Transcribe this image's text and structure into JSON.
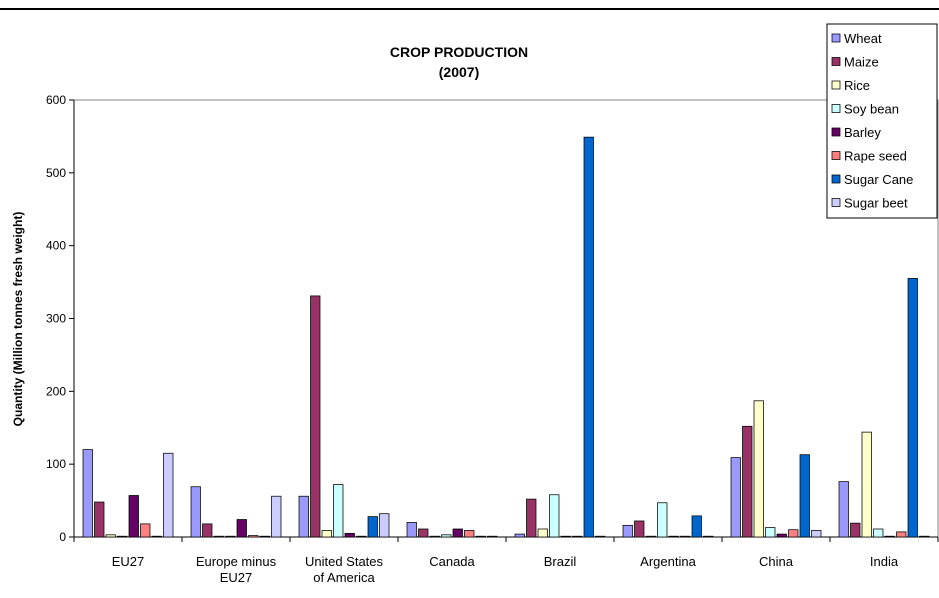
{
  "chart_data": {
    "type": "bar",
    "title": "CROP PRODUCTION",
    "subtitle": "(2007)",
    "xlabel": "",
    "ylabel": "Quantity (Million tonnes fresh weight)",
    "ylim": [
      0,
      600
    ],
    "yticks": [
      0,
      100,
      200,
      300,
      400,
      500,
      600
    ],
    "grid": false,
    "legend_position": "top-right",
    "categories": [
      [
        "EU27"
      ],
      [
        "Europe minus",
        "EU27"
      ],
      [
        "United States",
        "of America"
      ],
      [
        "Canada"
      ],
      [
        "Brazil"
      ],
      [
        "Argentina"
      ],
      [
        "China"
      ],
      [
        "India"
      ]
    ],
    "series": [
      {
        "name": "Wheat",
        "color": "#9999ff",
        "values": [
          120,
          69,
          56,
          20,
          4,
          16,
          109,
          76
        ]
      },
      {
        "name": "Maize",
        "color": "#993366",
        "values": [
          48,
          18,
          331,
          11,
          52,
          22,
          152,
          19
        ]
      },
      {
        "name": "Rice",
        "color": "#ffffcc",
        "values": [
          3,
          1,
          9,
          0,
          11,
          1,
          187,
          144
        ]
      },
      {
        "name": "Soy bean",
        "color": "#ccffff",
        "values": [
          1,
          1,
          72,
          3,
          58,
          47,
          13,
          11
        ]
      },
      {
        "name": "Barley",
        "color": "#660066",
        "values": [
          57,
          24,
          5,
          11,
          0,
          1,
          4,
          1
        ]
      },
      {
        "name": "Rape seed",
        "color": "#ff8080",
        "values": [
          18,
          2,
          1,
          9,
          0,
          0,
          10,
          7
        ]
      },
      {
        "name": "Sugar Cane",
        "color": "#0066cc",
        "values": [
          0,
          0,
          28,
          0,
          549,
          29,
          113,
          355
        ]
      },
      {
        "name": "Sugar beet",
        "color": "#ccccff",
        "values": [
          115,
          56,
          32,
          1,
          0,
          0,
          9,
          0
        ]
      }
    ]
  }
}
